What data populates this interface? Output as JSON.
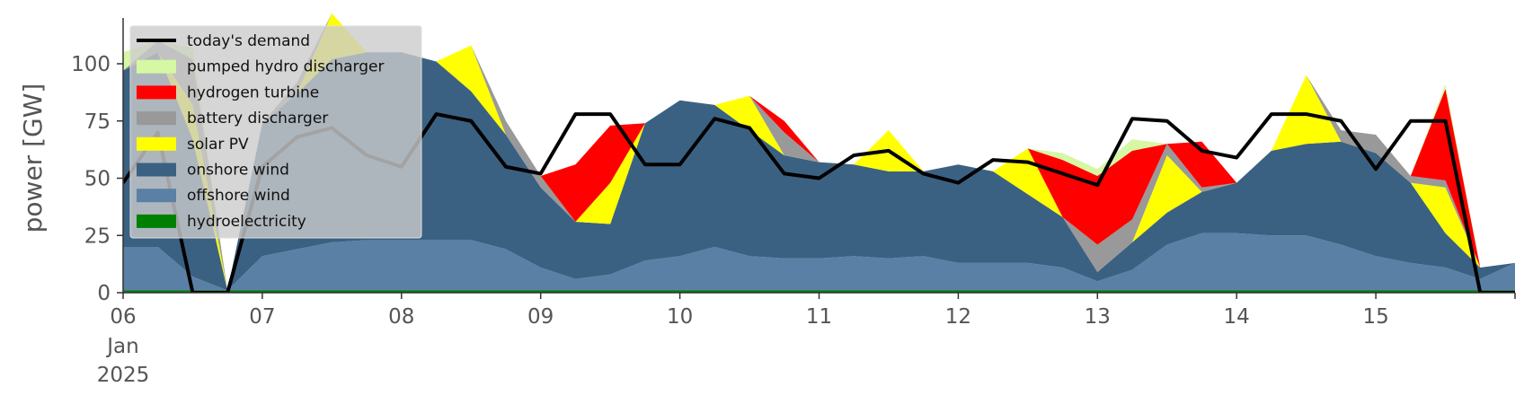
{
  "chart_data": {
    "type": "area",
    "title": "",
    "xlabel": "",
    "ylabel": "power [GW]",
    "ylim": [
      0,
      120
    ],
    "xlim": [
      "2025-01-06T00:00",
      "2025-01-16T00:00"
    ],
    "y_ticks": [
      0,
      25,
      50,
      75,
      100
    ],
    "x_ticks": [
      {
        "date": "2025-01-06",
        "label": "06",
        "sublabel": "Jan",
        "sublabel2": "2025"
      },
      {
        "date": "2025-01-07",
        "label": "07"
      },
      {
        "date": "2025-01-08",
        "label": "08"
      },
      {
        "date": "2025-01-09",
        "label": "09"
      },
      {
        "date": "2025-01-10",
        "label": "10"
      },
      {
        "date": "2025-01-11",
        "label": "11"
      },
      {
        "date": "2025-01-12",
        "label": "12"
      },
      {
        "date": "2025-01-13",
        "label": "13"
      },
      {
        "date": "2025-01-14",
        "label": "14"
      },
      {
        "date": "2025-01-15",
        "label": "15"
      }
    ],
    "grid": false,
    "legend_position": "top-left",
    "x": [
      "2025-01-06T00:00",
      "2025-01-06T06:00",
      "2025-01-06T12:00",
      "2025-01-06T18:00",
      "2025-01-07T00:00",
      "2025-01-07T06:00",
      "2025-01-07T12:00",
      "2025-01-07T18:00",
      "2025-01-08T00:00",
      "2025-01-08T06:00",
      "2025-01-08T12:00",
      "2025-01-08T18:00",
      "2025-01-09T00:00",
      "2025-01-09T06:00",
      "2025-01-09T12:00",
      "2025-01-09T18:00",
      "2025-01-10T00:00",
      "2025-01-10T06:00",
      "2025-01-10T12:00",
      "2025-01-10T18:00",
      "2025-01-11T00:00",
      "2025-01-11T06:00",
      "2025-01-11T12:00",
      "2025-01-11T18:00",
      "2025-01-12T00:00",
      "2025-01-12T06:00",
      "2025-01-12T12:00",
      "2025-01-12T18:00",
      "2025-01-13T00:00",
      "2025-01-13T06:00",
      "2025-01-13T12:00",
      "2025-01-13T18:00",
      "2025-01-14T00:00",
      "2025-01-14T06:00",
      "2025-01-14T12:00",
      "2025-01-14T18:00",
      "2025-01-15T00:00",
      "2025-01-15T06:00",
      "2025-01-15T12:00",
      "2025-01-15T18:00",
      "2025-01-16T00:00"
    ],
    "series": [
      {
        "name": "hydroelectricity",
        "color": "#008000",
        "values": [
          1,
          1,
          1,
          1,
          1,
          1,
          1,
          1,
          1,
          1,
          1,
          1,
          1,
          1,
          1,
          1,
          1,
          1,
          1,
          1,
          1,
          1,
          1,
          1,
          1,
          1,
          1,
          1,
          1,
          1,
          1,
          1,
          1,
          1,
          1,
          1,
          1,
          1,
          1,
          1,
          1
        ]
      },
      {
        "name": "offshore wind",
        "color": "#5b80a5",
        "values": [
          19,
          19,
          6,
          0,
          15,
          18,
          21,
          22,
          22,
          22,
          22,
          18,
          10,
          5,
          7,
          13,
          15,
          19,
          15,
          14,
          14,
          15,
          14,
          15,
          12,
          12,
          12,
          10,
          4,
          9,
          20,
          25,
          25,
          24,
          24,
          20,
          15,
          12,
          10,
          5,
          12
        ]
      },
      {
        "name": "onshore wind",
        "color": "#3b6182",
        "values": [
          77,
          85,
          60,
          0,
          58,
          68,
          80,
          82,
          82,
          78,
          65,
          50,
          35,
          25,
          22,
          60,
          68,
          62,
          55,
          45,
          42,
          40,
          38,
          37,
          43,
          40,
          30,
          22,
          4,
          12,
          14,
          18,
          22,
          37,
          40,
          45,
          45,
          35,
          15,
          5,
          0
        ]
      },
      {
        "name": "solar PV",
        "color": "#ffff00",
        "values": [
          0,
          0,
          15,
          0,
          0,
          0,
          20,
          0,
          0,
          0,
          20,
          0,
          0,
          0,
          18,
          0,
          0,
          0,
          15,
          0,
          0,
          0,
          18,
          0,
          0,
          0,
          20,
          0,
          0,
          0,
          25,
          0,
          0,
          0,
          30,
          0,
          0,
          0,
          20,
          0,
          0
        ]
      },
      {
        "name": "battery discharger",
        "color": "#999999",
        "values": [
          0,
          5,
          20,
          0,
          0,
          5,
          0,
          0,
          0,
          0,
          0,
          6,
          5,
          0,
          0,
          0,
          0,
          0,
          0,
          10,
          0,
          0,
          0,
          0,
          0,
          0,
          0,
          0,
          12,
          10,
          5,
          2,
          0,
          0,
          0,
          5,
          8,
          3,
          3,
          0,
          0
        ]
      },
      {
        "name": "hydrogen turbine",
        "color": "#ff0000",
        "values": [
          0,
          0,
          0,
          0,
          0,
          0,
          0,
          0,
          0,
          0,
          0,
          0,
          0,
          25,
          25,
          0,
          0,
          0,
          0,
          5,
          0,
          0,
          0,
          0,
          0,
          0,
          0,
          25,
          30,
          30,
          0,
          20,
          0,
          0,
          0,
          0,
          0,
          0,
          40,
          0,
          0
        ]
      },
      {
        "name": "pumped hydro discharger",
        "color": "#d6f7a3",
        "values": [
          8,
          0,
          5,
          0,
          0,
          0,
          0,
          0,
          0,
          0,
          0,
          0,
          0,
          0,
          0,
          0,
          0,
          0,
          0,
          0,
          0,
          0,
          0,
          0,
          0,
          0,
          0,
          3,
          3,
          5,
          0,
          0,
          0,
          0,
          0,
          0,
          0,
          0,
          2,
          0,
          0
        ]
      }
    ],
    "demand": {
      "name": "today's demand",
      "color": "#000000",
      "values": [
        48,
        70,
        0,
        0,
        55,
        68,
        72,
        60,
        55,
        78,
        75,
        55,
        52,
        78,
        78,
        56,
        56,
        76,
        72,
        52,
        50,
        60,
        62,
        52,
        48,
        58,
        57,
        52,
        47,
        76,
        75,
        62,
        59,
        78,
        78,
        75,
        54,
        75,
        75,
        0,
        0
      ]
    },
    "legend_order": [
      "today's demand",
      "pumped hydro discharger",
      "hydrogen turbine",
      "battery discharger",
      "solar PV",
      "onshore wind",
      "offshore wind",
      "hydroelectricity"
    ]
  }
}
